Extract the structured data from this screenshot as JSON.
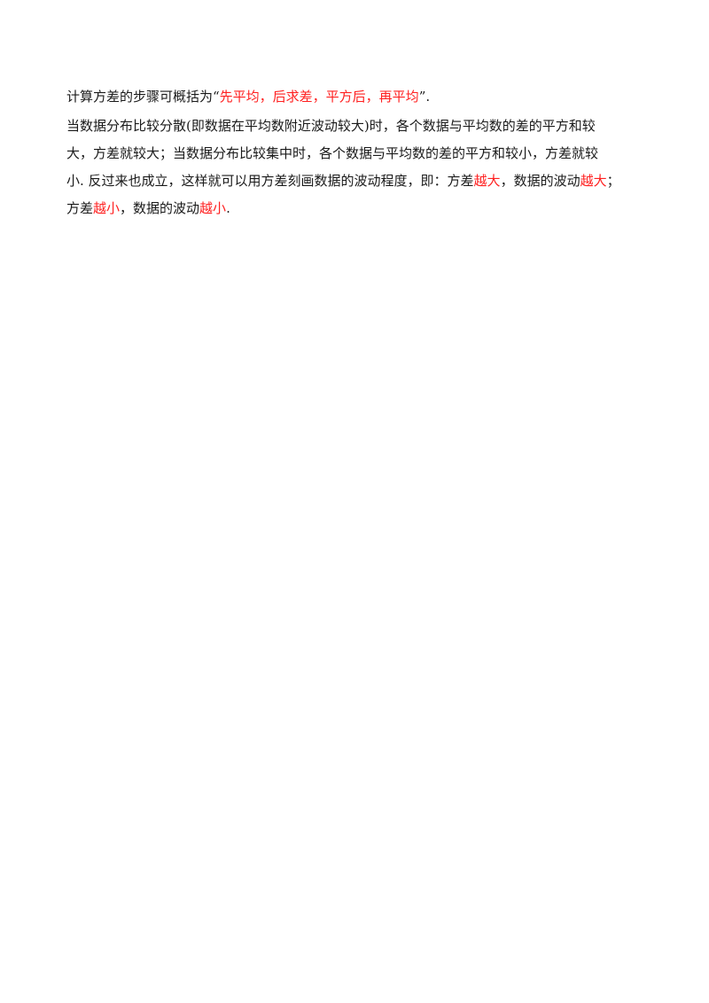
{
  "paragraphs": {
    "p1": {
      "a": "计算方差的步骤可概括为“",
      "b": "先平均，后求差，平方后，再平均",
      "c": "”."
    },
    "p2": {
      "l1": "当数据分布比较分散(即数据在平均数附近波动较大)时，各个数据与平均数的差的平方和较",
      "l2": "大，方差就较大；当数据分布比较集中时，各个数据与平均数的差的平方和较小，方差就较",
      "l3a": "小. 反过来也成立，这样就可以用方差刻画数据的波动程度，即：方差",
      "l3b": "越大",
      "l3c": "，数据的波动",
      "l3d": "越大",
      "l3e": "；",
      "l4a": "方差",
      "l4b": "越小",
      "l4c": "，数据的波动",
      "l4d": "越小",
      "l4e": "."
    }
  },
  "colors": {
    "highlight": "#ff2020",
    "text": "#1a1a1a"
  }
}
